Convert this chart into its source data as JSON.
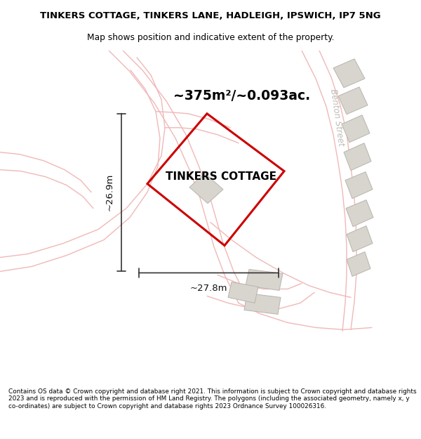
{
  "title_line1": "TINKERS COTTAGE, TINKERS LANE, HADLEIGH, IPSWICH, IP7 5NG",
  "title_line2": "Map shows position and indicative extent of the property.",
  "area_label": "~375m²/~0.093ac.",
  "width_label": "~27.8m",
  "height_label": "~26.9m",
  "property_label": "TINKERS COTTAGE",
  "street_label": "Benton Street",
  "footer_text": "Contains OS data © Crown copyright and database right 2021. This information is subject to Crown copyright and database rights 2023 and is reproduced with the permission of HM Land Registry. The polygons (including the associated geometry, namely x, y co-ordinates) are subject to Crown copyright and database rights 2023 Ordnance Survey 100026316.",
  "map_bg": "#faf8f6",
  "road_color": "#f0b8b8",
  "building_fill": "#d8d4ce",
  "building_edge": "#b8b4ae",
  "prop_color": "#cc0000",
  "prop_lw": 2.2,
  "dim_color": "#333333",
  "street_color": "#c0bcb8"
}
